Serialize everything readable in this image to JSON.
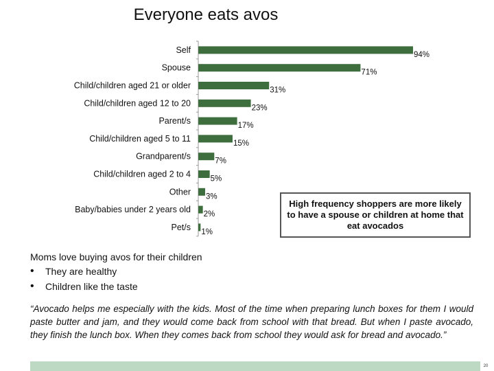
{
  "title": "Everyone eats avos",
  "chart_data": {
    "type": "bar",
    "orientation": "horizontal",
    "categories": [
      "Self",
      "Spouse",
      "Child/children aged 21 or older",
      "Child/children aged 12 to 20",
      "Parent/s",
      "Child/children aged 5 to 11",
      "Grandparent/s",
      "Child/children aged 2 to 4",
      "Other",
      "Baby/babies under 2 years old",
      "Pet/s"
    ],
    "values": [
      94,
      71,
      31,
      23,
      17,
      15,
      7,
      5,
      3,
      2,
      1
    ],
    "data_labels": [
      "94%",
      "71%",
      "31%",
      "23%",
      "17%",
      "15%",
      "7%",
      "5%",
      "3%",
      "2%",
      "1%"
    ],
    "xlim": [
      0,
      100
    ],
    "bar_color": "#3e6e3e",
    "grid": false,
    "legend": "none"
  },
  "callout": "High frequency shoppers are more likely to have a spouse or children at home that eat avocados",
  "notes": {
    "heading": "Moms love buying avos for their children",
    "bullets": [
      "They are healthy",
      "Children like the taste"
    ],
    "bullet_symbol": "•"
  },
  "quote": "“Avocado helps me especially with the kids.  Most of the time when preparing lunch boxes for them I would paste butter and jam, and they would come back from school with that bread.  But when I paste avocado, they finish the lunch box.  When they comes back from school they would ask for bread and avocado.”",
  "footer": {
    "page_number": "20",
    "bar_color": "#bdd9c4"
  }
}
